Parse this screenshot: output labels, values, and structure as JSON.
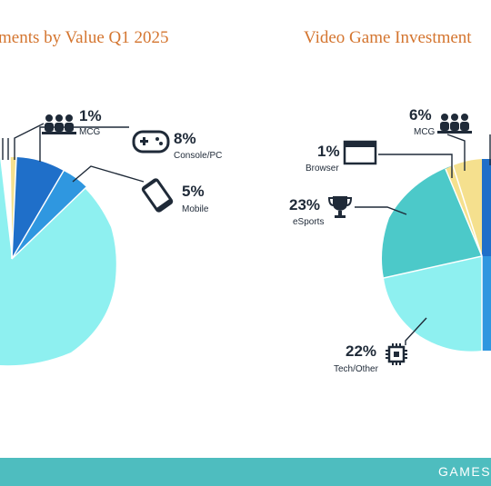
{
  "colors": {
    "title": "#d4752f",
    "footer": "#4ebdbf",
    "mcg": "#f5e08e",
    "console": "#1f6fc9",
    "mobile": "#2f97e0",
    "light_cyan": "#8ef0f0",
    "teal": "#4cc9c9",
    "browser": "#c7cbd6",
    "ink": "#1f2a38"
  },
  "footer_text": "GAMES",
  "chart_data": [
    {
      "type": "pie",
      "title": "ments by Value Q1 2025",
      "slices": [
        {
          "label": "MCG",
          "value": 1,
          "pct_label": "1%",
          "icon": "people-icon",
          "color": "#f5e08e"
        },
        {
          "label": "Console/PC",
          "value": 8,
          "pct_label": "8%",
          "icon": "gamepad-icon",
          "color": "#1f6fc9"
        },
        {
          "label": "Mobile",
          "value": 5,
          "pct_label": "5%",
          "icon": "phone-icon",
          "color": "#2f97e0"
        },
        {
          "label": "",
          "value": 86,
          "pct_label": "",
          "icon": "",
          "color": "#8ef0f0"
        }
      ]
    },
    {
      "type": "pie",
      "title": "Video Game Investment",
      "slices": [
        {
          "label": "MCG",
          "value": 6,
          "pct_label": "6%",
          "icon": "people-icon",
          "color": "#f5e08e"
        },
        {
          "label": "Browser",
          "value": 1,
          "pct_label": "1%",
          "icon": "browser-window-icon",
          "color": "#c7cbd6"
        },
        {
          "label": "eSports",
          "value": 23,
          "pct_label": "23%",
          "icon": "trophy-icon",
          "color": "#4cc9c9"
        },
        {
          "label": "Tech/Other",
          "value": 22,
          "pct_label": "22%",
          "icon": "chip-icon",
          "color": "#8ef0f0"
        }
      ]
    }
  ]
}
